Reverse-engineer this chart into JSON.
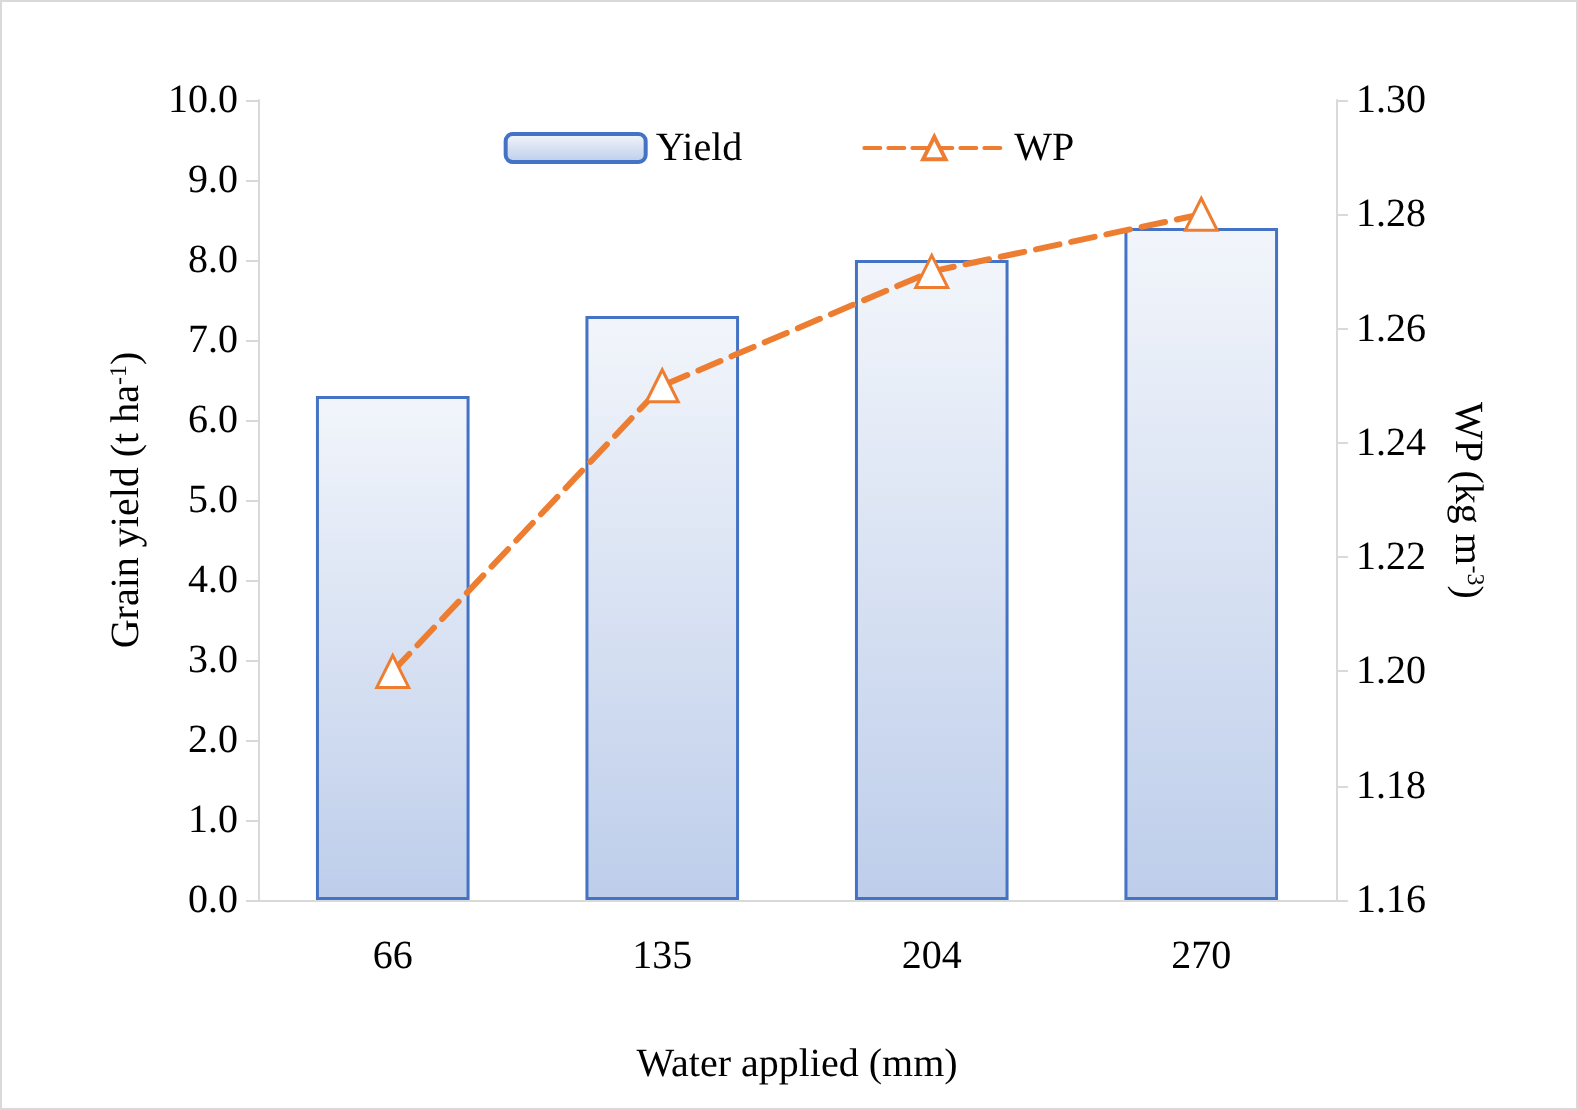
{
  "chart_data": {
    "type": "bar",
    "xlabel": "Water applied (mm)",
    "ylabel": "Grain yield (t ha$^{-1}$)",
    "y2label": "WP (kg m$^{-3}$)",
    "categories": [
      "66",
      "135",
      "204",
      "270"
    ],
    "series": [
      {
        "name": "Yield",
        "color": "#4472c4",
        "values": [
          6.3,
          7.3,
          8.0,
          8.4
        ]
      },
      {
        "name": "WP",
        "type": "line",
        "axis": "y2",
        "color": "#ed7d31",
        "values": [
          1.2,
          1.25,
          1.27,
          1.28
        ],
        "marker": "triangle",
        "line_style": "dashed"
      }
    ],
    "ylim": [
      0,
      10
    ],
    "yticks": [
      {
        "value": 0,
        "label": "0.0"
      },
      {
        "value": 1,
        "label": "1.0"
      },
      {
        "value": 2,
        "label": "2.0"
      },
      {
        "value": 3,
        "label": "3.0"
      },
      {
        "value": 4,
        "label": "4.0"
      },
      {
        "value": 5,
        "label": "5.0"
      },
      {
        "value": 6,
        "label": "6.0"
      },
      {
        "value": 7,
        "label": "7.0"
      },
      {
        "value": 8,
        "label": "8.0"
      },
      {
        "value": 9,
        "label": "9.0"
      },
      {
        "value": 10,
        "label": "10.0"
      }
    ],
    "y2lim": [
      1.16,
      1.3
    ],
    "y2ticks": [
      {
        "value": 1.16,
        "label": "1.16"
      },
      {
        "value": 1.18,
        "label": "1.18"
      },
      {
        "value": 1.2,
        "label": "1.20"
      },
      {
        "value": 1.22,
        "label": "1.22"
      },
      {
        "value": 1.24,
        "label": "1.24"
      },
      {
        "value": 1.26,
        "label": "1.26"
      },
      {
        "value": 1.28,
        "label": "1.28"
      },
      {
        "value": 1.3,
        "label": "1.30"
      }
    ],
    "grid": false,
    "legend": "top"
  }
}
